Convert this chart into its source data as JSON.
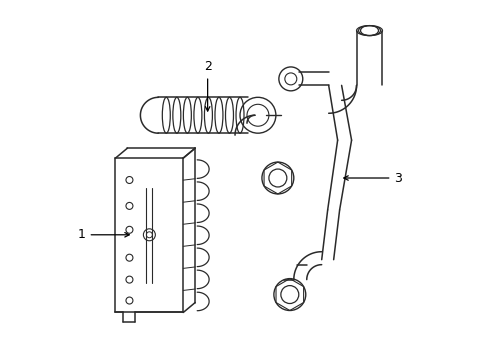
{
  "background_color": "#ffffff",
  "line_color": "#2a2a2a",
  "line_width": 1.1,
  "label_color": "#000000",
  "figsize": [
    4.89,
    3.6
  ],
  "dpi": 100,
  "part1_label": "1",
  "part2_label": "2",
  "part3_label": "3"
}
